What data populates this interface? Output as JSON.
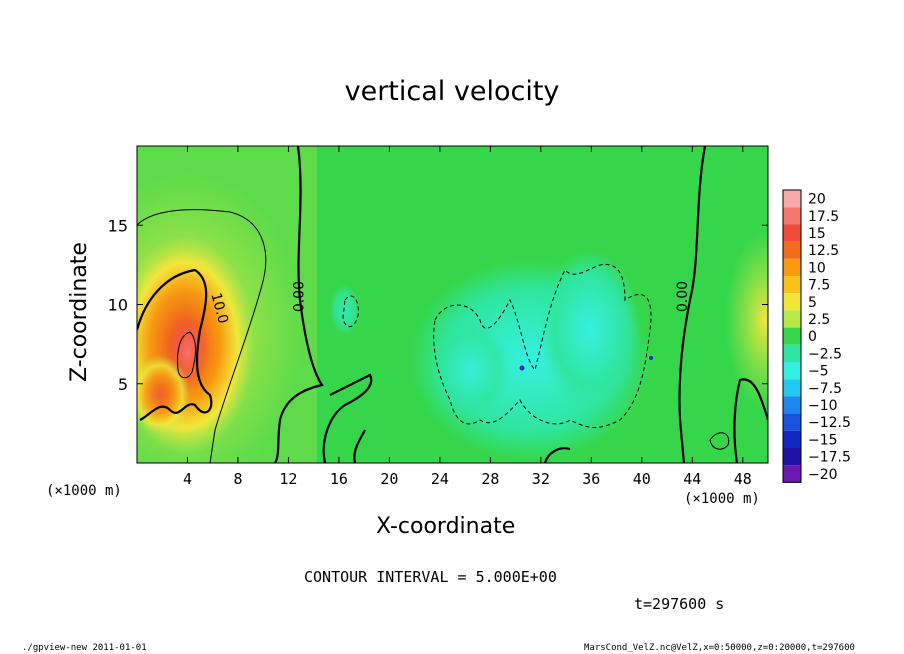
{
  "title": "vertical velocity",
  "x_unit_left": "(×1000 m)",
  "x_unit_right": "(×1000 m)",
  "contour_interval": "CONTOUR INTERVAL = 5.000E+00",
  "time_label": "t=297600 s",
  "footer_left": "./gpview-new   2011-01-01",
  "footer_right": "MarsCond_VelZ.nc@VelZ,x=0:50000,z=0:20000,t=297600",
  "colorbar": {
    "levels": [
      "20",
      "17.5",
      "15",
      "12.5",
      "10",
      "7.5",
      "5",
      "2.5",
      "0",
      "-2.5",
      "-5",
      "-7.5",
      "-10",
      "-12.5",
      "-15",
      "-17.5",
      "-20"
    ],
    "colors": [
      "#f7a8a8",
      "#f4766f",
      "#ef4a3a",
      "#f26a1c",
      "#f79a10",
      "#f7c21a",
      "#f2e63a",
      "#b7e84b",
      "#36d64a",
      "#2fe6a0",
      "#35f0e0",
      "#22c8f2",
      "#1d86f0",
      "#1a52e0",
      "#1226c2",
      "#1c12a6",
      "#6a18b0"
    ]
  },
  "chart_data": {
    "type": "heatmap",
    "title": "vertical velocity",
    "xlabel": "X-coordinate",
    "ylabel": "Z-coordinate",
    "x_unit": "(×1000 m)",
    "z_unit": "(×1000 m)",
    "xlim": [
      0,
      50
    ],
    "ylim": [
      0,
      20
    ],
    "x_ticks": [
      4,
      8,
      12,
      16,
      20,
      24,
      28,
      32,
      36,
      40,
      44,
      48
    ],
    "y_ticks": [
      5,
      10,
      15
    ],
    "contour_labels": [
      {
        "text": "10.0",
        "x": 6.2,
        "z": 9.7,
        "angle": 75
      },
      {
        "text": "0.00",
        "x": 13.2,
        "z": 10.5,
        "angle": -90
      },
      {
        "text": "0.00",
        "x": 43.6,
        "z": 10.5,
        "angle": -90
      }
    ],
    "features": {
      "updraft_max": {
        "x": 4.0,
        "z": 7.2,
        "value": 17.5
      },
      "downdraft_region": {
        "x_range": [
          23,
          40
        ],
        "z_range": [
          1,
          12
        ],
        "value": -7.5
      }
    }
  }
}
